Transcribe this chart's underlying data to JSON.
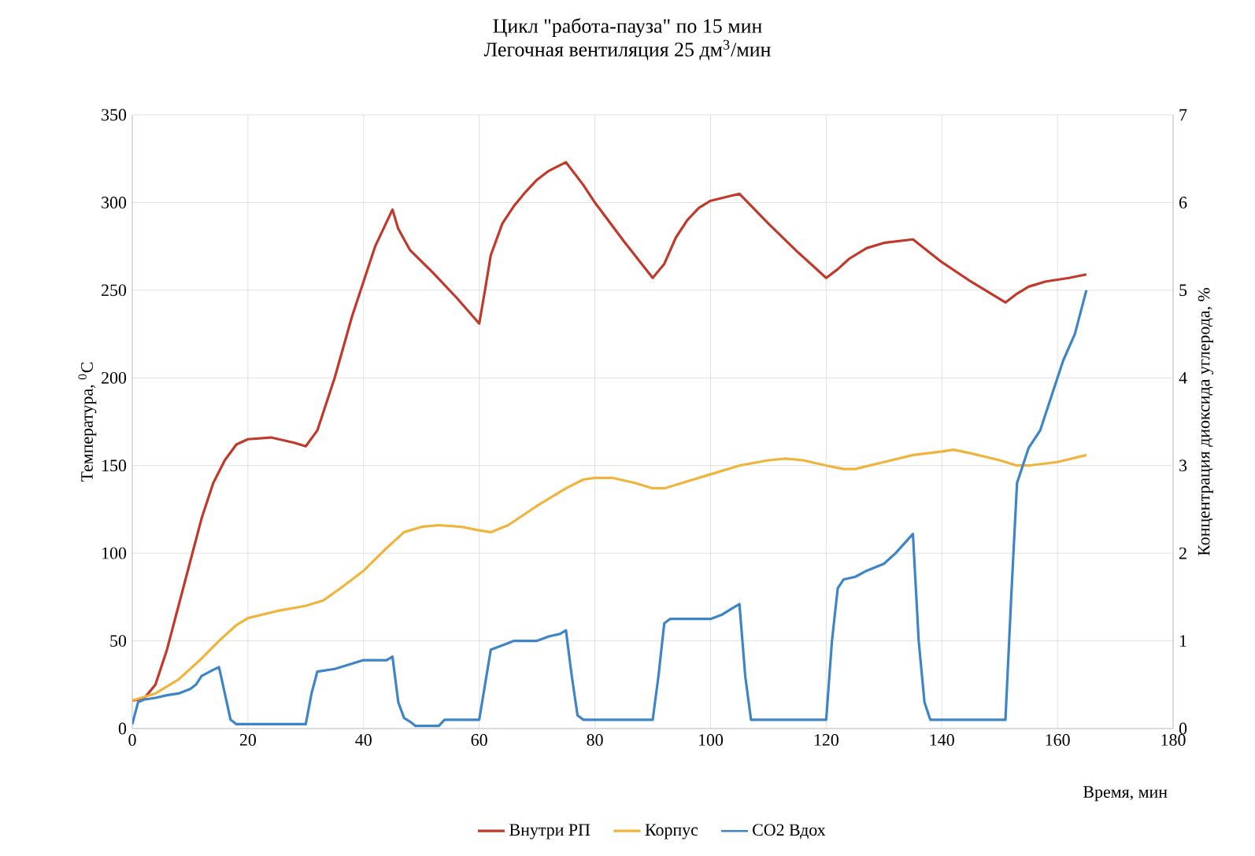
{
  "chart_data": {
    "type": "line",
    "title": "Цикл \"работа-пауза\" по 15 мин",
    "subtitle": "Легочная вентиляция 25 дм$^{3}$/мин",
    "xlabel": "Время, мин",
    "ylabel": "Температура, $^{0}$C",
    "y2label": "Концентрация диоксида углерода, %",
    "xlim": [
      0,
      180
    ],
    "xticks": [
      0,
      20,
      40,
      60,
      80,
      100,
      120,
      140,
      160,
      180
    ],
    "ylim": [
      0,
      350
    ],
    "yticks": [
      0,
      50,
      100,
      150,
      200,
      250,
      300,
      350
    ],
    "y2lim": [
      0,
      7
    ],
    "y2ticks": [
      0,
      1,
      2,
      3,
      4,
      5,
      6,
      7
    ],
    "grid": true,
    "legend": "bottom",
    "marker": "none",
    "line_style": "solid",
    "series": [
      {
        "name": "Внутри РП",
        "color": "#c0392b",
        "x": [
          0,
          2,
          4,
          6,
          8,
          10,
          12,
          14,
          16,
          18,
          20,
          24,
          28,
          30,
          32,
          35,
          38,
          42,
          45,
          46,
          48,
          52,
          56,
          60,
          61,
          62,
          64,
          66,
          68,
          70,
          72,
          75,
          78,
          80,
          85,
          90,
          92,
          94,
          96,
          98,
          100,
          105,
          110,
          115,
          120,
          122,
          124,
          127,
          130,
          135,
          140,
          145,
          151,
          153,
          155,
          158,
          162,
          165
        ],
        "values": [
          16,
          17,
          25,
          45,
          70,
          95,
          120,
          140,
          153,
          162,
          165,
          166,
          163,
          161,
          170,
          200,
          235,
          275,
          296,
          285,
          273,
          260,
          246,
          231,
          250,
          270,
          288,
          298,
          306,
          313,
          318,
          323,
          310,
          300,
          278,
          257,
          265,
          280,
          290,
          297,
          301,
          305,
          288,
          272,
          257,
          262,
          268,
          274,
          277,
          279,
          266,
          255,
          243,
          248,
          252,
          255,
          257,
          259
        ]
      },
      {
        "name": "Корпус",
        "color": "#f0b43c",
        "x": [
          0,
          4,
          8,
          12,
          15,
          18,
          20,
          25,
          30,
          33,
          36,
          40,
          44,
          47,
          50,
          53,
          57,
          60,
          62,
          65,
          70,
          75,
          78,
          80,
          83,
          87,
          90,
          92,
          95,
          100,
          105,
          110,
          113,
          116,
          120,
          123,
          125,
          130,
          135,
          140,
          142,
          145,
          150,
          153,
          155,
          160,
          165
        ],
        "values": [
          16,
          20,
          28,
          40,
          50,
          59,
          63,
          67,
          70,
          73,
          80,
          90,
          103,
          112,
          115,
          116,
          115,
          113,
          112,
          116,
          127,
          137,
          142,
          143,
          143,
          140,
          137,
          137,
          140,
          145,
          150,
          153,
          154,
          153,
          150,
          148,
          148,
          152,
          156,
          158,
          159,
          157,
          153,
          150,
          150,
          152,
          156
        ]
      },
      {
        "name": "CO2 Вдох",
        "color": "#3d85c6",
        "axis": "y2",
        "x": [
          0,
          1,
          2,
          4,
          6,
          8,
          10,
          11,
          12,
          14,
          15,
          16,
          17,
          18,
          30,
          31,
          32,
          35,
          37,
          40,
          44,
          45,
          46,
          47,
          48,
          49,
          53,
          54,
          60,
          61,
          62,
          64,
          66,
          70,
          72,
          74,
          75,
          76,
          77,
          78,
          90,
          91,
          92,
          93,
          100,
          102,
          104,
          105,
          106,
          107,
          120,
          121,
          122,
          123,
          125,
          127,
          130,
          132,
          135,
          136,
          137,
          138,
          151,
          152,
          153,
          154,
          155,
          157,
          159,
          161,
          163,
          165
        ],
        "values": [
          0.05,
          0.3,
          0.33,
          0.35,
          0.38,
          0.4,
          0.45,
          0.5,
          0.6,
          0.67,
          0.7,
          0.4,
          0.1,
          0.05,
          0.05,
          0.4,
          0.65,
          0.68,
          0.72,
          0.78,
          0.78,
          0.82,
          0.3,
          0.12,
          0.08,
          0.03,
          0.03,
          0.1,
          0.1,
          0.5,
          0.9,
          0.95,
          1.0,
          1.0,
          1.05,
          1.08,
          1.12,
          0.6,
          0.15,
          0.1,
          0.1,
          0.6,
          1.2,
          1.25,
          1.25,
          1.3,
          1.38,
          1.42,
          0.6,
          0.1,
          0.1,
          1.0,
          1.6,
          1.7,
          1.73,
          1.8,
          1.88,
          2.0,
          2.22,
          1.0,
          0.3,
          0.1,
          0.1,
          1.5,
          2.8,
          3.0,
          3.2,
          3.4,
          3.8,
          4.2,
          4.5,
          5.0
        ]
      }
    ]
  }
}
